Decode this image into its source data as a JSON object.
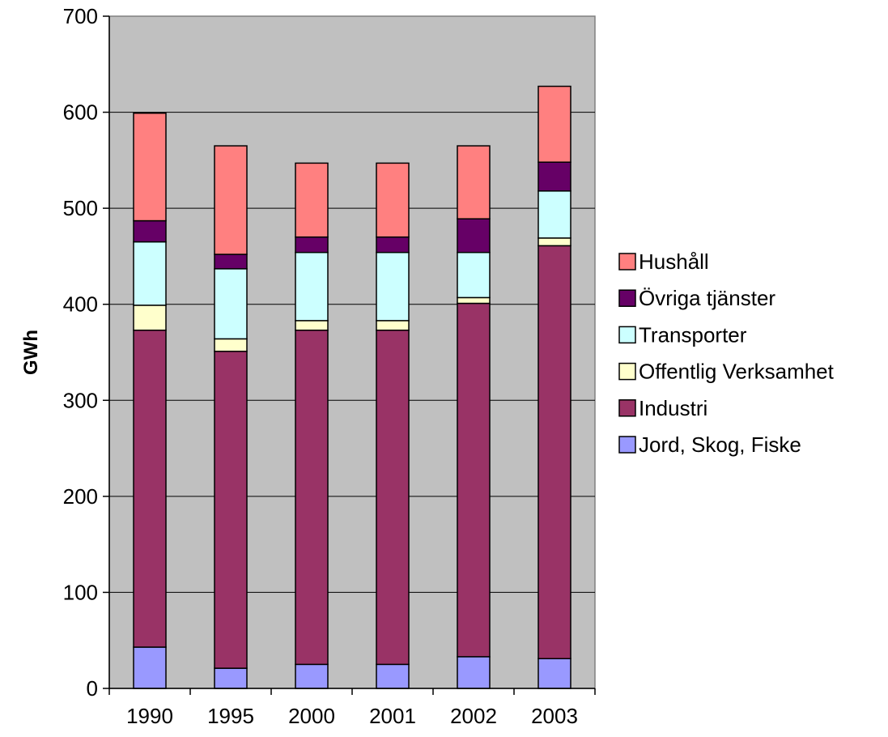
{
  "chart_data": {
    "type": "bar",
    "stacked": true,
    "title": "",
    "xlabel": "",
    "ylabel": "GWh",
    "ylim": [
      0,
      700
    ],
    "yticks": [
      0,
      100,
      200,
      300,
      400,
      500,
      600,
      700
    ],
    "grid": true,
    "legend_position": "right",
    "plot_background": "#c0c0c0",
    "categories": [
      "1990",
      "1995",
      "2000",
      "2001",
      "2002",
      "2003"
    ],
    "series": [
      {
        "name": "Jord, Skog, Fiske",
        "color": "#9999ff",
        "values": [
          43,
          21,
          25,
          25,
          33,
          31
        ]
      },
      {
        "name": "Industri",
        "color": "#993366",
        "values": [
          330,
          330,
          348,
          348,
          368,
          430
        ]
      },
      {
        "name": "Offentlig Verksamhet",
        "color": "#ffffcc",
        "values": [
          26,
          13,
          10,
          10,
          6,
          8
        ]
      },
      {
        "name": "Transporter",
        "color": "#ccffff",
        "values": [
          66,
          73,
          71,
          71,
          47,
          49
        ]
      },
      {
        "name": "Övriga tjänster",
        "color": "#660066",
        "values": [
          22,
          15,
          16,
          16,
          35,
          30
        ]
      },
      {
        "name": "Hushåll",
        "color": "#ff8080",
        "values": [
          112,
          113,
          77,
          77,
          76,
          79
        ]
      }
    ]
  }
}
